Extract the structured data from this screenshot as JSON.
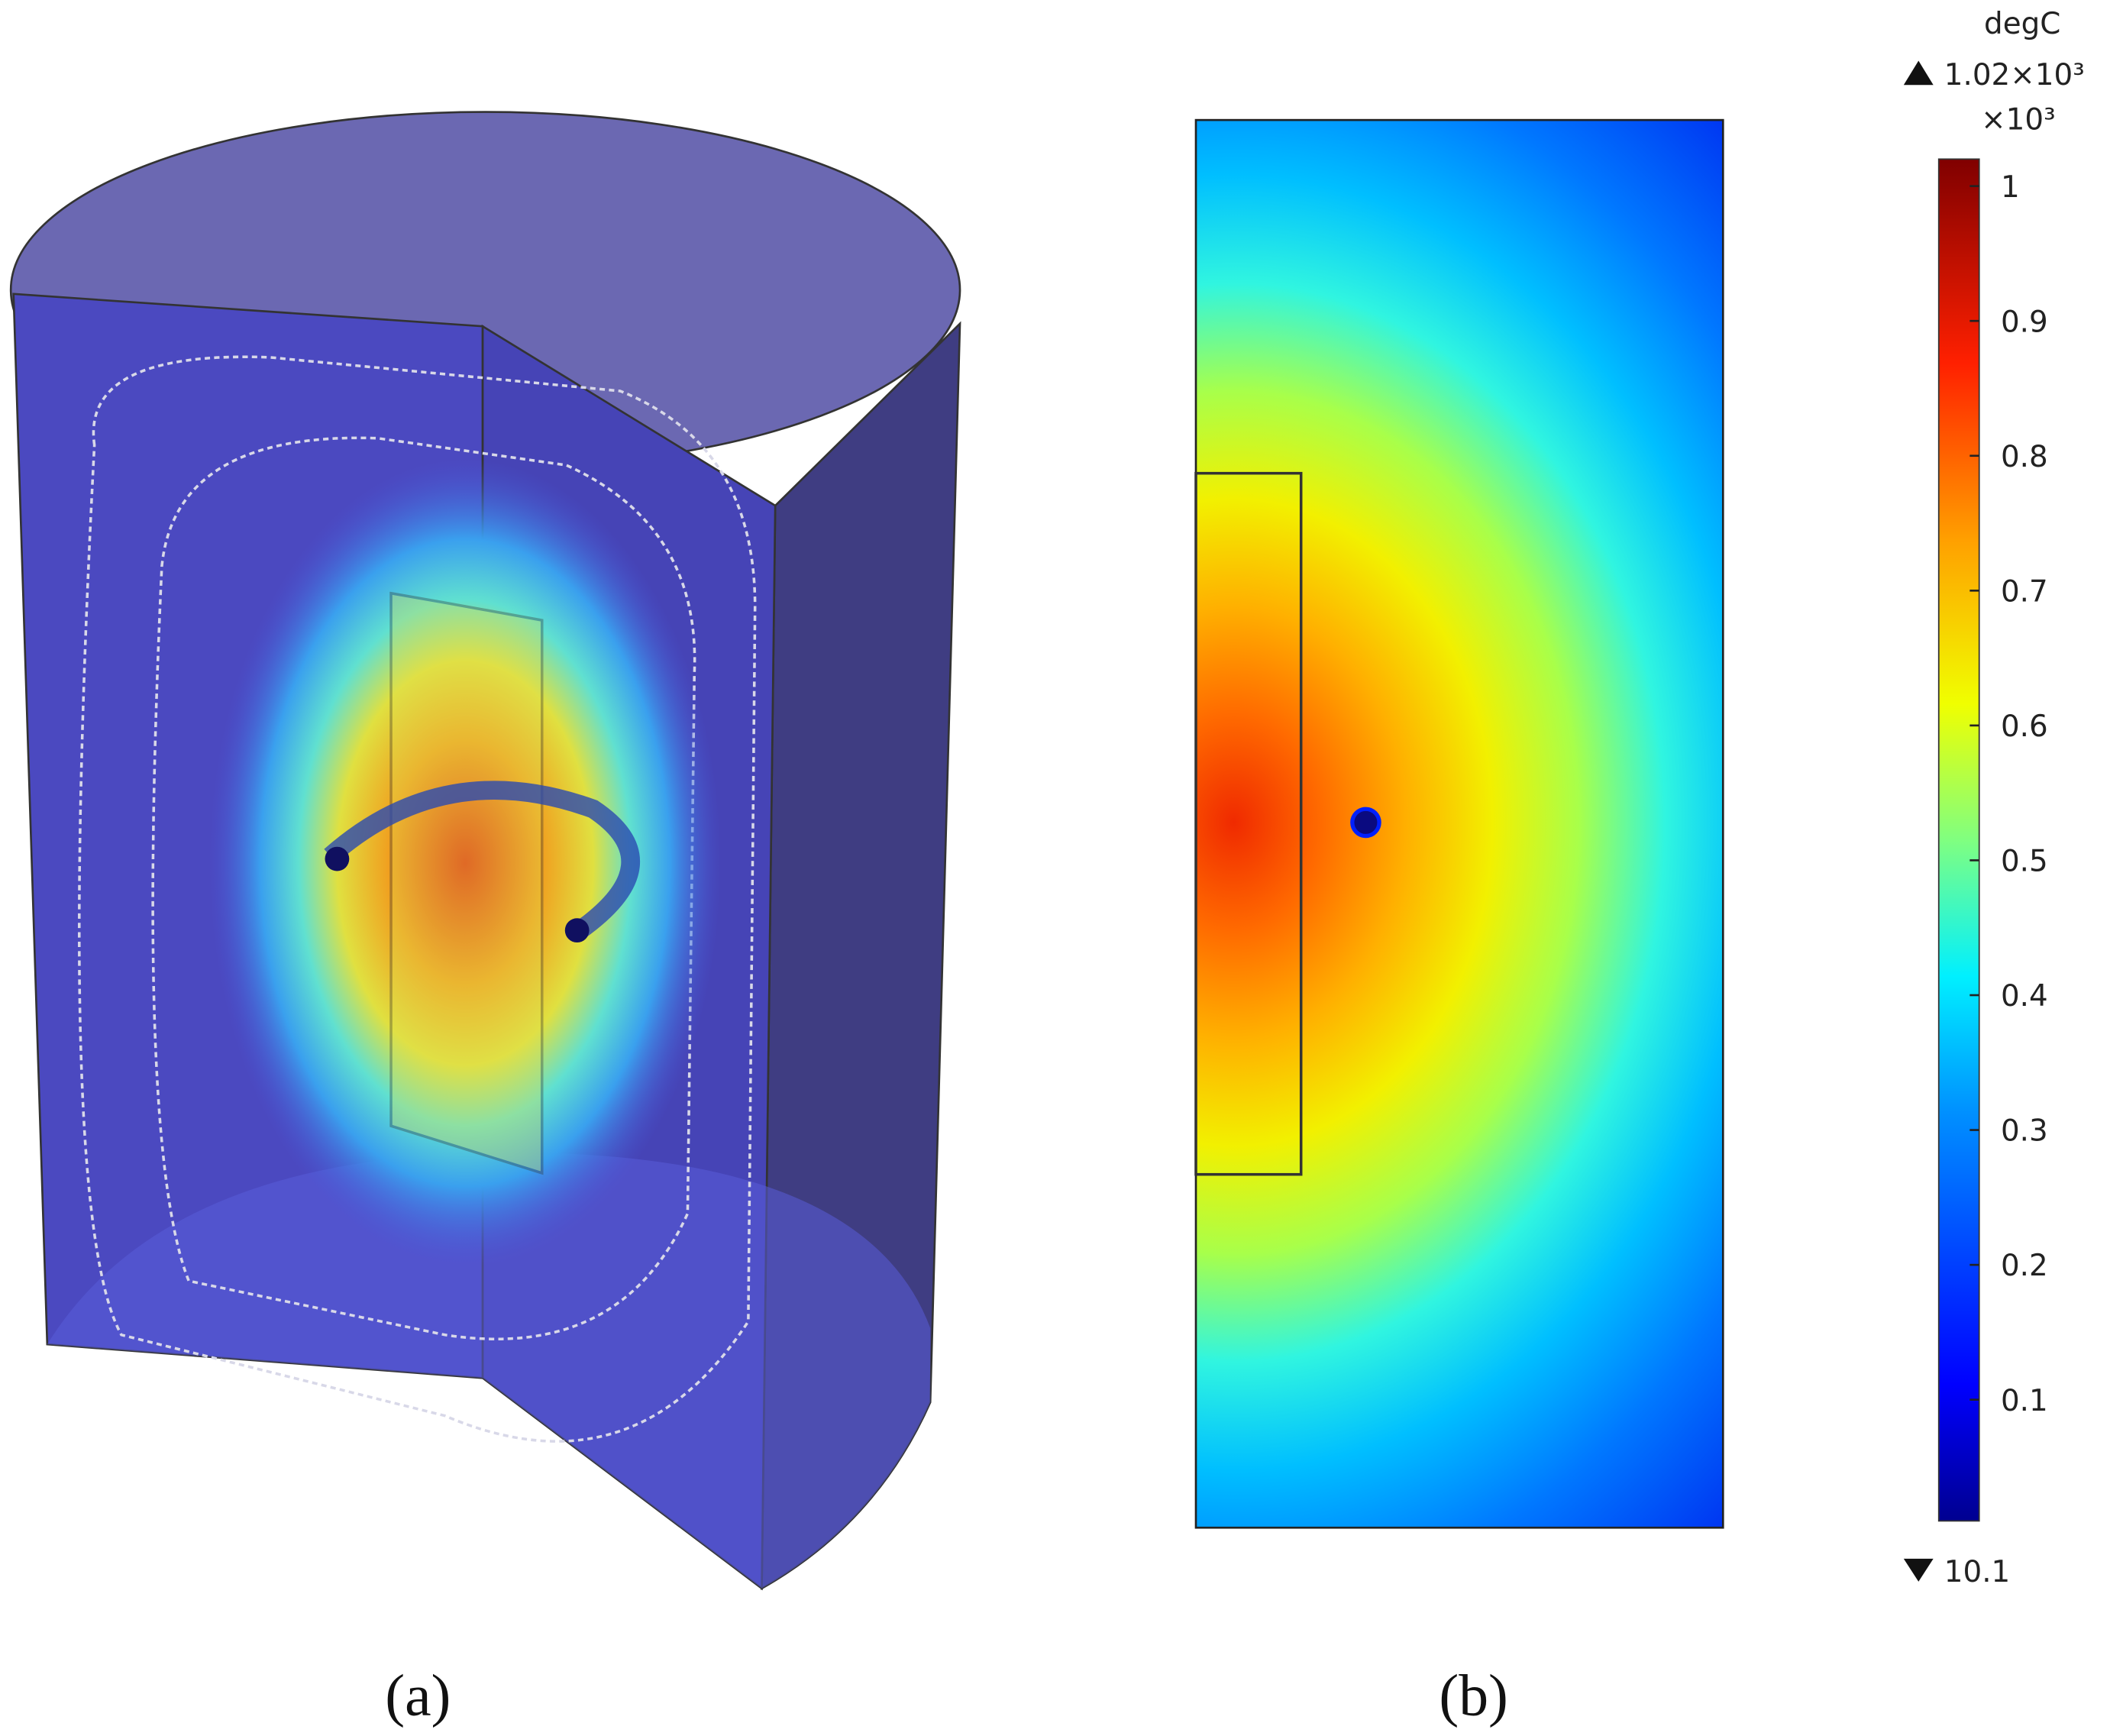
{
  "panels": [
    {
      "caption": "(a)"
    },
    {
      "caption": "(b)"
    }
  ],
  "colorbar": {
    "unit": "degC",
    "max": {
      "value": 1.02,
      "label": "1.02×10³"
    },
    "multiplier": "×10³",
    "min": {
      "value": 0.0101,
      "label": "10.1"
    },
    "ticks": [
      0.1,
      0.2,
      0.3,
      0.4,
      0.5,
      0.6,
      0.7,
      0.8,
      0.9,
      1
    ]
  }
}
